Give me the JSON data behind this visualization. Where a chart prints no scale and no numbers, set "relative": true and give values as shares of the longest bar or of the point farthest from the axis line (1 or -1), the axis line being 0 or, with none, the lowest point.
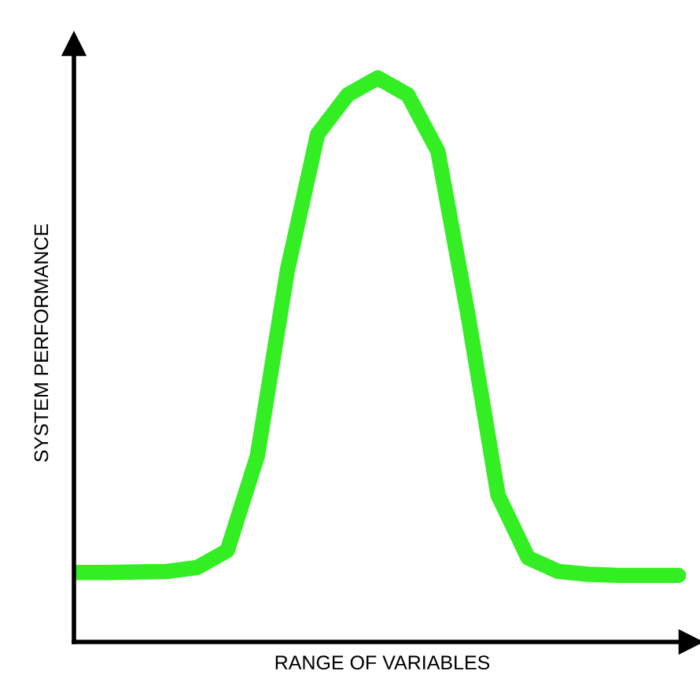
{
  "chart_data": {
    "type": "line",
    "relative": true,
    "xlabel": "RANGE OF VARIABLES",
    "ylabel": "SYSTEM PERFORMANCE",
    "categories": [
      null,
      null,
      null,
      null,
      null,
      null,
      null,
      null,
      null,
      null,
      null,
      null,
      null,
      null,
      null,
      null,
      null,
      null,
      null,
      null,
      null
    ],
    "series": [
      {
        "color": "#33ee22",
        "values": [
          0.123,
          0.123,
          0.124,
          0.125,
          0.132,
          0.162,
          0.33,
          0.66,
          0.9,
          0.97,
          1.0,
          0.97,
          0.87,
          0.58,
          0.26,
          0.149,
          0.125,
          0.12,
          0.118,
          0.118,
          0.118
        ]
      }
    ],
    "legend": false,
    "marker": "none",
    "line_style": "solid",
    "tick_labels": false
  }
}
